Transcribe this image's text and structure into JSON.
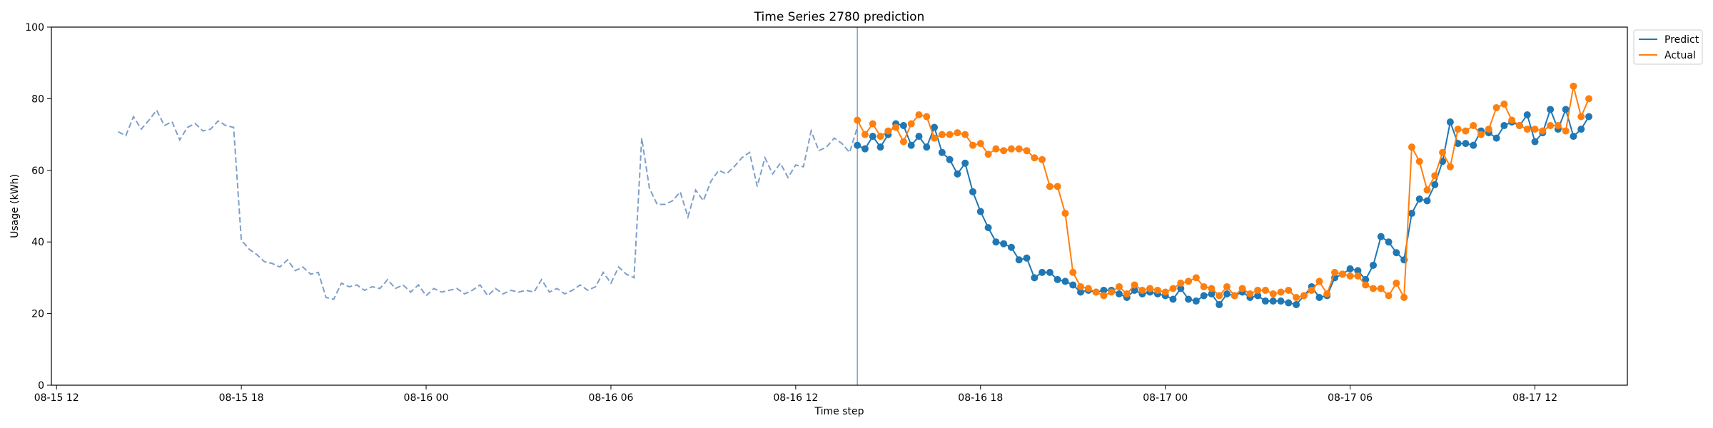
{
  "chart_data": {
    "type": "line",
    "title": "Time Series 2780 prediction",
    "xlabel": "Time step",
    "ylabel": "Usage (kWh)",
    "ylim": [
      0,
      100
    ],
    "y_ticks": [
      0,
      20,
      40,
      60,
      80,
      100
    ],
    "x_ticks": [
      "08-15 12",
      "08-15 18",
      "08-16 00",
      "08-16 06",
      "08-16 12",
      "08-16 18",
      "08-17 00",
      "08-17 06",
      "08-17 12"
    ],
    "xlim": [
      "2024-08-15 11:50",
      "2024-08-17 15:00"
    ],
    "forecast_start": "2024-08-16 14:00",
    "grid": false,
    "legend_position": "top-right (outside)",
    "colors": {
      "history": "#7f9fc9",
      "predict": "#1f77b4",
      "actual": "#ff7f0e",
      "divider": "#7f9fc9"
    },
    "history": {
      "start": "2024-08-15 14:00",
      "step_minutes": 15,
      "values": [
        70.8,
        69.7,
        75.0,
        71.5,
        74.0,
        76.8,
        72.5,
        73.6,
        68.5,
        72.0,
        73.1,
        71.0,
        71.5,
        73.8,
        72.5,
        72.0,
        40.5,
        38.0,
        36.5,
        34.5,
        34.0,
        33.0,
        35.0,
        32.0,
        33.0,
        31.0,
        31.5,
        24.5,
        24.0,
        28.5,
        27.5,
        28.0,
        26.5,
        27.5,
        27.0,
        29.5,
        27.0,
        28.0,
        26.0,
        28.0,
        25.0,
        27.0,
        26.0,
        26.5,
        27.0,
        25.5,
        26.5,
        28.0,
        25.0,
        27.0,
        25.5,
        26.5,
        26.0,
        26.5,
        26.0,
        29.5,
        26.0,
        27.0,
        25.5,
        26.5,
        28.0,
        26.5,
        27.5,
        31.5,
        28.5,
        33.0,
        31.0,
        30.0,
        69.0,
        55.0,
        50.5,
        50.5,
        51.5,
        54.0,
        47.0,
        54.5,
        51.5,
        57.0,
        60.0,
        59.0,
        61.0,
        63.5,
        65.0,
        55.5,
        63.5,
        59.0,
        62.0,
        58.0,
        61.5,
        61.0,
        71.0,
        65.5,
        66.5,
        69.0,
        67.5,
        65.0,
        72.0
      ]
    },
    "series": [
      {
        "name": "Predict",
        "start": "2024-08-16 14:00",
        "step_minutes": 15,
        "values": [
          67.0,
          66.0,
          69.5,
          66.5,
          70.0,
          73.0,
          72.5,
          67.0,
          69.5,
          66.5,
          72.0,
          65.0,
          63.0,
          59.0,
          62.0,
          54.0,
          48.5,
          44.0,
          40.0,
          39.5,
          38.5,
          35.0,
          35.5,
          30.0,
          31.5,
          31.5,
          29.5,
          29.0,
          28.0,
          26.0,
          26.5,
          26.0,
          26.5,
          26.5,
          25.5,
          24.5,
          26.5,
          25.5,
          26.0,
          25.5,
          25.0,
          24.0,
          27.0,
          24.0,
          23.5,
          25.0,
          25.5,
          22.5,
          25.5,
          25.0,
          26.0,
          24.5,
          25.0,
          23.5,
          23.5,
          23.5,
          23.0,
          22.5,
          25.0,
          27.5,
          24.5,
          25.0,
          30.0,
          31.0,
          32.5,
          32.0,
          29.5,
          33.5,
          41.5,
          40.0,
          37.0,
          35.0,
          48.0,
          52.0,
          51.5,
          56.0,
          62.5,
          73.5,
          67.5,
          67.5,
          67.0,
          71.0,
          70.5,
          69.0,
          72.5,
          73.5,
          72.5,
          75.5,
          68.0,
          70.5,
          77.0,
          71.5,
          77.0,
          69.5,
          71.5,
          75.0
        ]
      },
      {
        "name": "Actual",
        "start": "2024-08-16 14:00",
        "step_minutes": 15,
        "values": [
          74.0,
          70.0,
          73.0,
          69.5,
          71.0,
          72.0,
          68.0,
          73.0,
          75.5,
          75.0,
          69.0,
          70.0,
          70.0,
          70.5,
          70.0,
          67.0,
          67.5,
          64.5,
          66.0,
          65.5,
          66.0,
          66.0,
          65.5,
          63.5,
          63.0,
          55.5,
          55.5,
          48.0,
          31.5,
          27.5,
          27.0,
          26.0,
          25.0,
          26.0,
          27.5,
          25.5,
          28.0,
          26.5,
          27.0,
          26.5,
          26.0,
          27.0,
          28.5,
          29.0,
          30.0,
          27.5,
          27.0,
          25.0,
          27.5,
          25.0,
          27.0,
          25.5,
          26.5,
          26.5,
          25.5,
          26.0,
          26.5,
          24.5,
          25.0,
          26.5,
          29.0,
          25.5,
          31.5,
          31.0,
          30.5,
          30.5,
          28.0,
          27.0,
          27.0,
          25.0,
          28.5,
          24.5,
          66.5,
          62.5,
          54.5,
          58.5,
          65.0,
          61.0,
          71.5,
          71.0,
          72.5,
          70.0,
          71.5,
          77.5,
          78.5,
          74.0,
          72.5,
          71.5,
          71.5,
          71.0,
          72.5,
          72.5,
          71.0,
          83.5,
          75.0,
          80.0
        ]
      }
    ]
  }
}
